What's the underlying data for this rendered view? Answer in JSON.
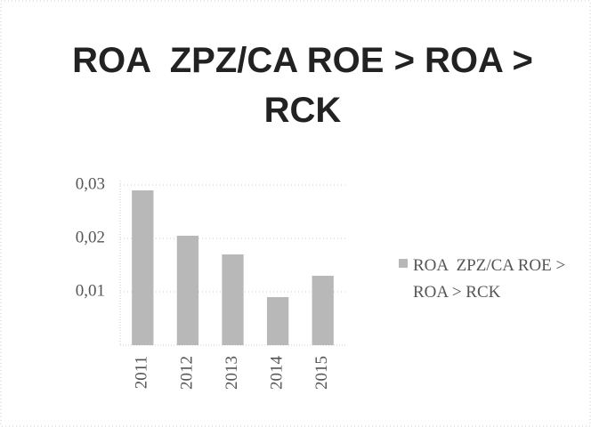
{
  "chart_data": {
    "type": "bar",
    "title": "ROA  ZPZ/CA ROE > ROA > RCK",
    "categories": [
      "2011",
      "2012",
      "2013",
      "2014",
      "2015"
    ],
    "series": [
      {
        "name": "ROA  ZPZ/CA ROE > ROA > RCK",
        "color": "#b8b8b8",
        "values": [
          0.029,
          0.0205,
          0.017,
          0.009,
          0.013
        ]
      }
    ],
    "ylim": [
      0,
      0.03
    ],
    "yticks": [
      {
        "value": 0.01,
        "label": "0,01"
      },
      {
        "value": 0.02,
        "label": "0,02"
      },
      {
        "value": 0.03,
        "label": "0,03"
      }
    ],
    "grid": true,
    "legend": "right"
  }
}
